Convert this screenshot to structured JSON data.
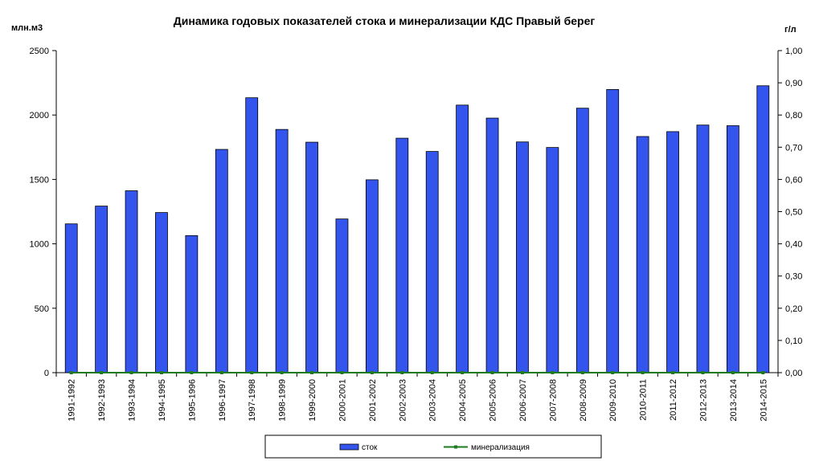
{
  "chart_data": {
    "type": "bar",
    "title": "Динамика годовых показателей стока и минерализации КДС Правый берег",
    "ylabel_left": "млн.м3",
    "ylabel_right": "г/л",
    "ylim_left": [
      0,
      2500
    ],
    "ylim_right": [
      0,
      1.0
    ],
    "yticks_left": [
      "0",
      "500",
      "1000",
      "1500",
      "2000",
      "2500"
    ],
    "yticks_right": [
      "0,00",
      "0,10",
      "0,20",
      "0,30",
      "0,40",
      "0,50",
      "0,60",
      "0,70",
      "0,80",
      "0,90",
      "1,00"
    ],
    "categories": [
      "1991-1992",
      "1992-1993",
      "1993-1994",
      "1994-1995",
      "1995-1996",
      "1996-1997",
      "1997-1998",
      "1998-1999",
      "1999-2000",
      "2000-2001",
      "2001-2002",
      "2002-2003",
      "2003-2004",
      "2004-2005",
      "2005-2006",
      "2006-2007",
      "2007-2008",
      "2008-2009",
      "2009-2010",
      "2010-2011",
      "2011-2012",
      "2012-2013",
      "2013-2014",
      "2014-2015"
    ],
    "series": [
      {
        "name": "сток",
        "type": "bar",
        "axis": "left",
        "color": "#3355ee",
        "values": [
          1155,
          1293,
          1412,
          1243,
          1064,
          1733,
          2134,
          1888,
          1789,
          1193,
          1497,
          1820,
          1717,
          2077,
          1976,
          1791,
          1748,
          2053,
          2198,
          1833,
          1871,
          1922,
          1917,
          2227
        ]
      },
      {
        "name": "минерализация",
        "type": "line",
        "axis": "right",
        "color": "#1e7a1e",
        "values": [
          0,
          0,
          0,
          0,
          0,
          0,
          0,
          0,
          0,
          0,
          0,
          0,
          0,
          0,
          0,
          0,
          0,
          0,
          0,
          0,
          0,
          0,
          0,
          0
        ]
      }
    ],
    "grid": false,
    "legend": "bottom"
  }
}
